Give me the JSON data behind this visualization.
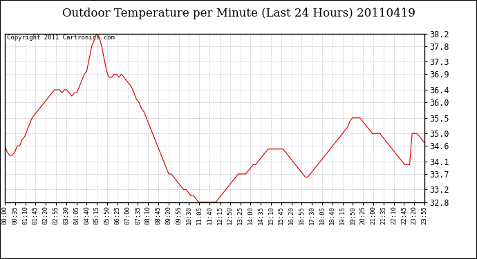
{
  "title": "Outdoor Temperature per Minute (Last 24 Hours) 20110419",
  "copyright_text": "Copyright 2011 Cartronics.com",
  "line_color": "#dd0000",
  "background_color": "#ffffff",
  "grid_color": "#999999",
  "title_fontsize": 12,
  "ylabel_fontsize": 8.5,
  "xlabel_fontsize": 6.5,
  "copyright_fontsize": 6.5,
  "ylim": [
    32.8,
    38.2
  ],
  "yticks": [
    32.8,
    33.2,
    33.7,
    34.1,
    34.6,
    35.0,
    35.5,
    36.0,
    36.4,
    36.9,
    37.3,
    37.8,
    38.2
  ],
  "x_tick_labels": [
    "00:00",
    "00:35",
    "01:10",
    "01:45",
    "02:20",
    "02:55",
    "03:30",
    "04:05",
    "04:40",
    "05:15",
    "05:50",
    "06:25",
    "07:00",
    "07:35",
    "08:10",
    "08:45",
    "09:20",
    "09:55",
    "10:30",
    "11:05",
    "11:40",
    "12:15",
    "12:50",
    "13:25",
    "14:00",
    "14:35",
    "15:10",
    "15:45",
    "16:20",
    "16:55",
    "17:30",
    "18:05",
    "18:40",
    "19:15",
    "19:50",
    "20:25",
    "21:00",
    "21:35",
    "22:10",
    "22:45",
    "23:20",
    "23:55"
  ],
  "temperature_data": [
    34.6,
    34.4,
    34.3,
    34.3,
    34.4,
    34.6,
    34.6,
    34.8,
    34.9,
    35.1,
    35.3,
    35.5,
    35.6,
    35.7,
    35.8,
    35.9,
    36.0,
    36.1,
    36.2,
    36.3,
    36.4,
    36.4,
    36.4,
    36.3,
    36.4,
    36.4,
    36.3,
    36.2,
    36.3,
    36.3,
    36.5,
    36.7,
    36.9,
    37.0,
    37.4,
    37.8,
    38.0,
    38.2,
    38.1,
    37.8,
    37.4,
    37.0,
    36.8,
    36.8,
    36.9,
    36.9,
    36.8,
    36.9,
    36.8,
    36.7,
    36.6,
    36.5,
    36.3,
    36.1,
    36.0,
    35.8,
    35.7,
    35.5,
    35.3,
    35.1,
    34.9,
    34.7,
    34.5,
    34.3,
    34.1,
    33.9,
    33.7,
    33.7,
    33.6,
    33.5,
    33.4,
    33.3,
    33.2,
    33.2,
    33.1,
    33.0,
    33.0,
    32.9,
    32.8,
    32.8,
    32.8,
    32.8,
    32.8,
    32.8,
    32.8,
    32.8,
    32.9,
    33.0,
    33.1,
    33.2,
    33.3,
    33.4,
    33.5,
    33.6,
    33.7,
    33.7,
    33.7,
    33.7,
    33.8,
    33.9,
    34.0,
    34.0,
    34.1,
    34.2,
    34.3,
    34.4,
    34.5,
    34.5,
    34.5,
    34.5,
    34.5,
    34.5,
    34.5,
    34.4,
    34.3,
    34.2,
    34.1,
    34.0,
    33.9,
    33.8,
    33.7,
    33.6,
    33.6,
    33.7,
    33.8,
    33.9,
    34.0,
    34.1,
    34.2,
    34.3,
    34.4,
    34.5,
    34.6,
    34.7,
    34.8,
    34.9,
    35.0,
    35.1,
    35.2,
    35.4,
    35.5,
    35.5,
    35.5,
    35.5,
    35.4,
    35.3,
    35.2,
    35.1,
    35.0,
    35.0,
    35.0,
    35.0,
    34.9,
    34.8,
    34.7,
    34.6,
    34.5,
    34.4,
    34.3,
    34.2,
    34.1,
    34.0,
    34.0,
    34.0,
    35.0,
    35.0,
    35.0,
    34.9,
    34.8,
    34.7
  ]
}
